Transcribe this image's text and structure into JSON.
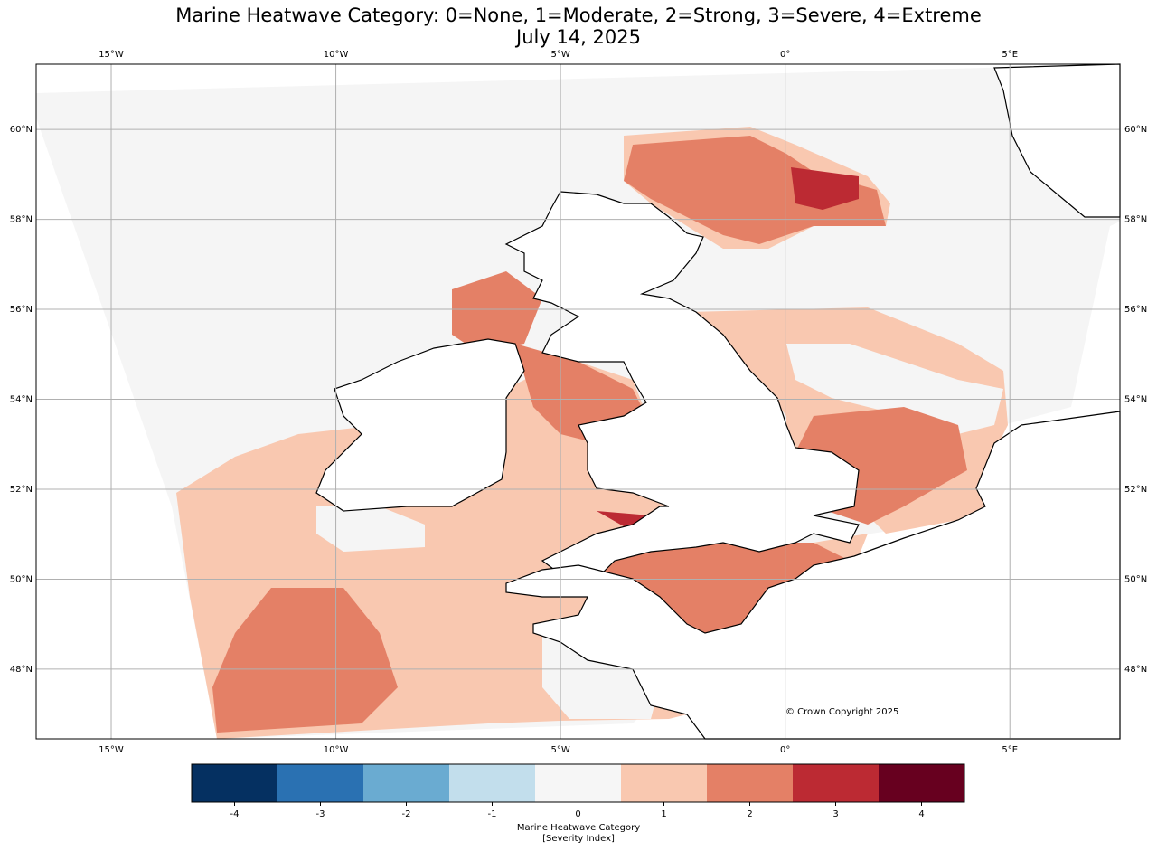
{
  "title": "Marine Heatwave Category: 0=None, 1=Moderate, 2=Strong, 3=Severe, 4=Extreme",
  "subtitle": "July 14, 2025",
  "map": {
    "xlim": [
      -16.67,
      7.45
    ],
    "ylim": [
      46.45,
      61.45
    ],
    "xticks": [
      {
        "value": -15,
        "label": "15°W"
      },
      {
        "value": -10,
        "label": "10°W"
      },
      {
        "value": -5,
        "label": "5°W"
      },
      {
        "value": 0,
        "label": "0°"
      },
      {
        "value": 5,
        "label": "5°E"
      }
    ],
    "yticks": [
      {
        "value": 48,
        "label": "48°N"
      },
      {
        "value": 50,
        "label": "50°N"
      },
      {
        "value": 52,
        "label": "52°N"
      },
      {
        "value": 54,
        "label": "54°N"
      },
      {
        "value": 56,
        "label": "56°N"
      },
      {
        "value": 58,
        "label": "58°N"
      },
      {
        "value": 60,
        "label": "60°N"
      }
    ],
    "grid": true,
    "copyright": "© Crown Copyright 2025"
  },
  "colorbar": {
    "ticks": [
      -4,
      -3,
      -2,
      -1,
      0,
      1,
      2,
      3,
      4
    ],
    "colors": [
      "#053061",
      "#2a71b2",
      "#6aabd1",
      "#c2deec",
      "#f6f6f6",
      "#f9c8b0",
      "#e48066",
      "#bc2a33",
      "#67001f"
    ],
    "label": "Marine Heatwave Category",
    "sublabel": "[Severity Index]"
  }
}
